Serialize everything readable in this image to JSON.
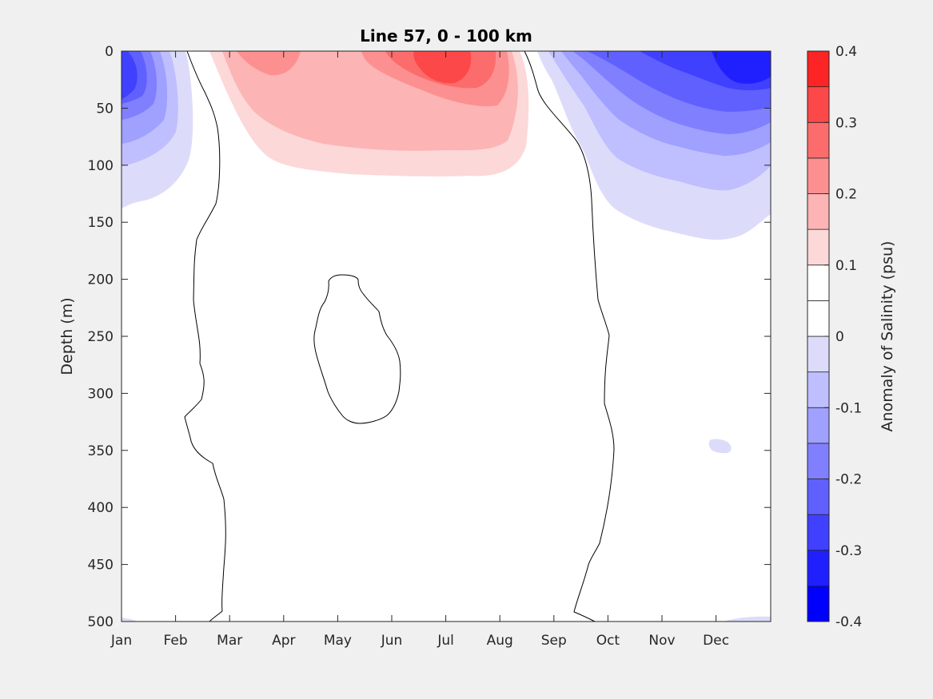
{
  "chart_data": {
    "type": "heatmap",
    "title": "Line 57, 0 - 100 km",
    "xlabel": "",
    "ylabel": "Depth (m)",
    "x_categories": [
      "Jan",
      "Feb",
      "Mar",
      "Apr",
      "May",
      "Jun",
      "Jul",
      "Aug",
      "Sep",
      "Oct",
      "Nov",
      "Dec"
    ],
    "ylim": [
      0,
      500
    ],
    "y_reversed": true,
    "y_ticks": [
      0,
      50,
      100,
      150,
      200,
      250,
      300,
      350,
      400,
      450,
      500
    ],
    "colorbar": {
      "label": "Anomaly of Salinity (psu)",
      "range": [
        -0.4,
        0.4
      ],
      "tick_values": [
        -0.4,
        -0.3,
        -0.2,
        -0.1,
        0,
        0.1,
        0.2,
        0.3,
        0.4
      ],
      "tick_labels": [
        "-0.4",
        "-0.3",
        "-0.2",
        "-0.1",
        "0",
        "0.1",
        "0.2",
        "0.3",
        "0.4"
      ],
      "levels": [
        -0.4,
        -0.35,
        -0.3,
        -0.25,
        -0.2,
        -0.15,
        -0.1,
        -0.05,
        0,
        0.05,
        0.1,
        0.15,
        0.2,
        0.25,
        0.3,
        0.35,
        0.4
      ],
      "colors": [
        "#0000ff",
        "#2020ff",
        "#4040ff",
        "#6060ff",
        "#8080ff",
        "#a0a0ff",
        "#bfbfff",
        "#dcdcfa",
        "#ffffff",
        "#ffffff",
        "#fcd8d8",
        "#fcb4b4",
        "#fc9090",
        "#fc6c6c",
        "#fc4848",
        "#fc2424",
        "#ff0000"
      ]
    },
    "features": [
      {
        "name": "Winter fresh anomaly (Jan–Feb, surface)",
        "min_value": -0.3,
        "month_range": [
          "Jan",
          "Feb"
        ],
        "depth_range": [
          0,
          140
        ]
      },
      {
        "name": "Spring–summer salty anomaly (Mar–Aug, surface)",
        "max_value": 0.3,
        "month_range": [
          "Mar",
          "Aug"
        ],
        "depth_range": [
          0,
          165
        ]
      },
      {
        "name": "Autumn–winter fresh anomaly (Sep–Dec, surface)",
        "min_value": -0.35,
        "month_range": [
          "Sep",
          "Dec"
        ],
        "depth_range": [
          0,
          165
        ]
      }
    ]
  }
}
